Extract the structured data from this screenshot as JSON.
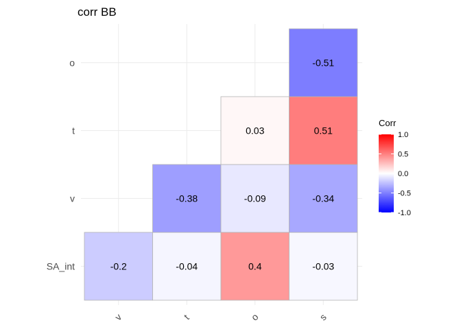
{
  "chart_data": {
    "type": "heatmap",
    "title": "corr BB",
    "x_categories": [
      "v",
      "t",
      "o",
      "s"
    ],
    "y_categories": [
      "SA_int",
      "v",
      "t",
      "o"
    ],
    "cells": [
      {
        "x": "v",
        "y": "SA_int",
        "value": -0.2,
        "label": "-0.2"
      },
      {
        "x": "t",
        "y": "SA_int",
        "value": -0.04,
        "label": "-0.04"
      },
      {
        "x": "o",
        "y": "SA_int",
        "value": 0.4,
        "label": "0.4"
      },
      {
        "x": "s",
        "y": "SA_int",
        "value": -0.03,
        "label": "-0.03"
      },
      {
        "x": "t",
        "y": "v",
        "value": -0.38,
        "label": "-0.38"
      },
      {
        "x": "o",
        "y": "v",
        "value": -0.09,
        "label": "-0.09"
      },
      {
        "x": "s",
        "y": "v",
        "value": -0.34,
        "label": "-0.34"
      },
      {
        "x": "o",
        "y": "t",
        "value": 0.03,
        "label": "0.03"
      },
      {
        "x": "s",
        "y": "t",
        "value": 0.51,
        "label": "0.51"
      },
      {
        "x": "s",
        "y": "o",
        "value": -0.51,
        "label": "-0.51"
      }
    ],
    "legend": {
      "title": "Corr",
      "position": "right",
      "range": [
        -1,
        1
      ],
      "ticks": [
        "1.0",
        "0.5",
        "0.0",
        "-0.5",
        "-1.0"
      ],
      "tick_values": [
        1.0,
        0.5,
        0.0,
        -0.5,
        -1.0
      ],
      "colors": {
        "low": "#0000ff",
        "mid": "#ffffff",
        "high": "#ff0000"
      }
    },
    "grid": true,
    "x_tick_rotation": "angled"
  }
}
